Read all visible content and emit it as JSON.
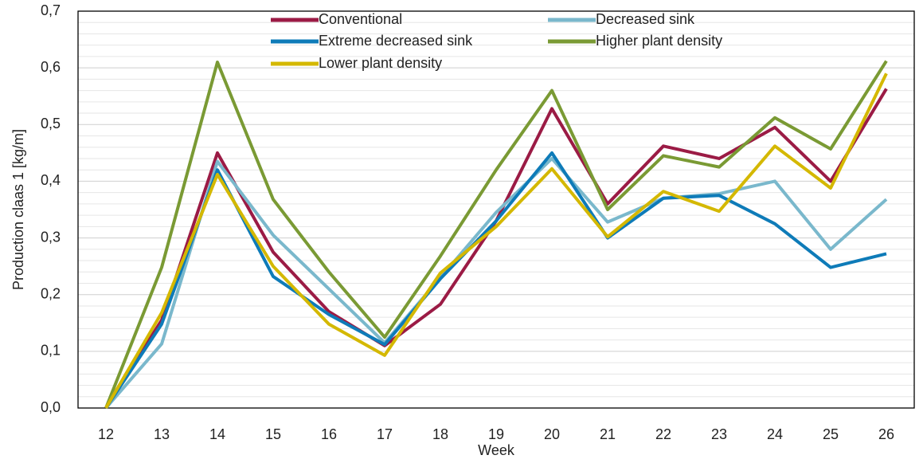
{
  "chart_data": {
    "type": "line",
    "x_label": "Week",
    "y_label": "Production claas 1 [kg/m]",
    "categories": [
      "12",
      "13",
      "14",
      "15",
      "16",
      "17",
      "18",
      "19",
      "20",
      "21",
      "22",
      "23",
      "24",
      "25",
      "26"
    ],
    "series": [
      {
        "name": "Conventional",
        "color": "#9b1b45",
        "values": [
          0,
          0.155,
          0.45,
          0.275,
          0.17,
          0.11,
          0.183,
          0.33,
          0.528,
          0.36,
          0.462,
          0.44,
          0.495,
          0.4,
          0.563
        ]
      },
      {
        "name": "Decreased sink",
        "color": "#7ab8cc",
        "values": [
          0,
          0.113,
          0.435,
          0.305,
          0.21,
          0.115,
          0.23,
          0.345,
          0.44,
          0.328,
          0.37,
          0.378,
          0.4,
          0.28,
          0.368
        ]
      },
      {
        "name": "Extreme decreased sink",
        "color": "#0e7bb8",
        "values": [
          0,
          0.148,
          0.42,
          0.232,
          0.165,
          0.112,
          0.228,
          0.33,
          0.45,
          0.3,
          0.37,
          0.375,
          0.325,
          0.248,
          0.272
        ]
      },
      {
        "name": "Higher plant density",
        "color": "#7a9a34",
        "values": [
          0,
          0.248,
          0.61,
          0.368,
          0.24,
          0.125,
          0.268,
          0.42,
          0.56,
          0.35,
          0.445,
          0.425,
          0.512,
          0.457,
          0.612
        ]
      },
      {
        "name": "Lower plant density",
        "color": "#d4b800",
        "values": [
          0,
          0.168,
          0.412,
          0.25,
          0.148,
          0.093,
          0.238,
          0.32,
          0.422,
          0.302,
          0.382,
          0.347,
          0.462,
          0.388,
          0.59
        ]
      }
    ],
    "ylim": [
      0,
      0.7
    ],
    "yticks": [
      {
        "value": 0,
        "label": "0,0"
      },
      {
        "value": 0.1,
        "label": "0,1"
      },
      {
        "value": 0.2,
        "label": "0,2"
      },
      {
        "value": 0.3,
        "label": "0,3"
      },
      {
        "value": 0.4,
        "label": "0,4"
      },
      {
        "value": 0.5,
        "label": "0,5"
      },
      {
        "value": 0.6,
        "label": "0,6"
      },
      {
        "value": 0.7,
        "label": "0,7"
      }
    ],
    "yminor_ticks": [
      0.02,
      0.04,
      0.06,
      0.08,
      0.12,
      0.14,
      0.16,
      0.18,
      0.22,
      0.24,
      0.26,
      0.28,
      0.32,
      0.34,
      0.36,
      0.38,
      0.42,
      0.44,
      0.46,
      0.48,
      0.52,
      0.54,
      0.56,
      0.58,
      0.62,
      0.64,
      0.66,
      0.68
    ],
    "grid": true,
    "legend": "top"
  }
}
